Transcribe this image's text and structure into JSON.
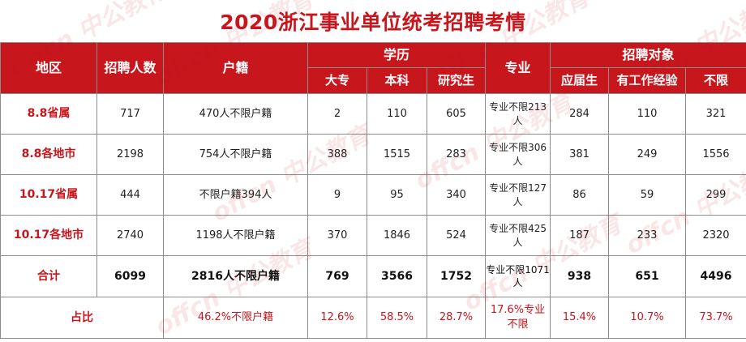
{
  "title": "2020浙江事业单位统考招聘考情",
  "watermark": "offcn 中公教育",
  "header": {
    "region": "地区",
    "recruit_count": "招聘人数",
    "hukou": "户籍",
    "education": "学历",
    "edu_cols": [
      "大专",
      "本科",
      "研究生"
    ],
    "major": "专业",
    "target": "招聘对象",
    "target_cols": [
      "应届生",
      "有工作经验",
      "不限"
    ]
  },
  "rows": [
    {
      "region": "8.8省属",
      "count": "717",
      "hukou": "470人不限户籍",
      "dazhuan": "2",
      "benke": "110",
      "yanjiusheng": "605",
      "major": "专业不限213人",
      "yingjie": "284",
      "work_exp": "110",
      "buxian": "321"
    },
    {
      "region": "8.8各地市",
      "count": "2198",
      "hukou": "754人不限户籍",
      "dazhuan": "388",
      "benke": "1515",
      "yanjiusheng": "283",
      "major": "专业不限306人",
      "yingjie": "381",
      "work_exp": "249",
      "buxian": "1556"
    },
    {
      "region": "10.17省属",
      "count": "444",
      "hukou": "不限户籍394人",
      "dazhuan": "9",
      "benke": "95",
      "yanjiusheng": "340",
      "major": "专业不限127人",
      "yingjie": "86",
      "work_exp": "59",
      "buxian": "299"
    },
    {
      "region": "10.17各地市",
      "count": "2740",
      "hukou": "1198人不限户籍",
      "dazhuan": "370",
      "benke": "1846",
      "yanjiusheng": "524",
      "major": "专业不限425人",
      "yingjie": "187",
      "work_exp": "233",
      "buxian": "2320"
    }
  ],
  "total": {
    "region": "合计",
    "count": "6099",
    "hukou": "2816人不限户籍",
    "dazhuan": "769",
    "benke": "3566",
    "yanjiusheng": "1752",
    "major": "专业不限1071人",
    "yingjie": "938",
    "work_exp": "651",
    "buxian": "4496"
  },
  "ratio": {
    "region": "占比",
    "hukou": "46.2%不限户籍",
    "dazhuan": "12.6%",
    "benke": "58.5%",
    "yanjiusheng": "28.7%",
    "major": "17.6%专业不限",
    "yingjie": "15.4%",
    "work_exp": "10.7%",
    "buxian": "73.7%"
  },
  "colors": {
    "accent": "#c8161d",
    "border": "#8c8c8c"
  }
}
